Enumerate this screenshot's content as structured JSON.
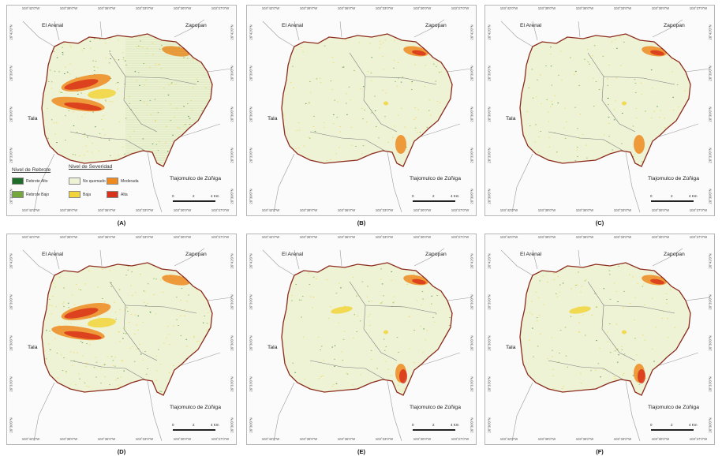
{
  "coords": {
    "top": [
      "103°42'0\"W",
      "103°39'0\"W",
      "103°36'0\"W",
      "103°33'0\"W",
      "103°30'0\"W",
      "103°27'0\"W"
    ],
    "bottom": [
      "103°42'0\"W",
      "103°39'0\"W",
      "103°36'0\"W",
      "103°33'0\"W",
      "103°30'0\"W",
      "103°27'0\"W"
    ],
    "left": [
      "20°42'0\"N",
      "20°39'0\"N",
      "20°36'0\"N",
      "20°33'0\"N",
      "20°30'0\"N"
    ],
    "right": [
      "20°42'0\"N",
      "20°39'0\"N",
      "20°36'0\"N",
      "20°33'0\"N",
      "20°30'0\"N"
    ]
  },
  "places": {
    "arenal": "El Arenal",
    "zapopan": "Zapopan",
    "tala": "Tala",
    "tlajomulco": "Tlajomulco de Zúñiga"
  },
  "scale": {
    "zero": "0",
    "mid": "2",
    "end": "4 Km"
  },
  "legend": {
    "regrowth_title": "Nivel de Rebrote",
    "severity_title": "Nivel de Severidad",
    "items": [
      {
        "label": "Rebrote Alto",
        "color": "#1e6b2a"
      },
      {
        "label": "Rebrote Bajo",
        "color": "#74a83a"
      },
      {
        "label": "No quemado",
        "color": "#eef3d6"
      },
      {
        "label": "Baja",
        "color": "#f1d33a"
      },
      {
        "label": "Moderada",
        "color": "#ee8a1f"
      },
      {
        "label": "Alta",
        "color": "#d8321a"
      }
    ]
  },
  "panels": [
    {
      "caption": "(A)",
      "severity_level": "high",
      "regrowth_level": "high"
    },
    {
      "caption": "(B)",
      "severity_level": "low",
      "regrowth_level": "low"
    },
    {
      "caption": "(C)",
      "severity_level": "low",
      "regrowth_level": "low"
    },
    {
      "caption": "(D)",
      "severity_level": "high",
      "regrowth_level": "low"
    },
    {
      "caption": "(E)",
      "severity_level": "moderate",
      "regrowth_level": "low"
    },
    {
      "caption": "(F)",
      "severity_level": "moderate",
      "regrowth_level": "low"
    }
  ],
  "colors": {
    "boundary": "#8c2a1c",
    "fill": "#eef3d6",
    "roads": "#9a9a9a",
    "muni": "#7b7b7b"
  }
}
